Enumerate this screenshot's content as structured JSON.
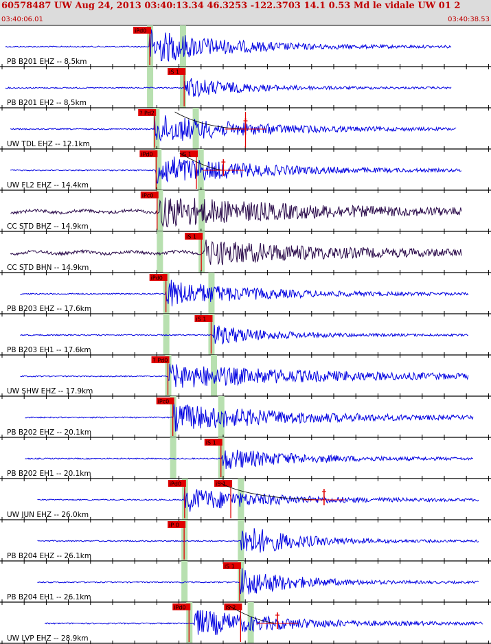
{
  "header": {
    "title": "60578487 UW Aug 24, 2013 03:40:13.34   46.3253 -122.3703 14.1 0.53 Md le vidale UW 01   2",
    "time_start": "03:40:06.01",
    "time_end": "03:40:38.53"
  },
  "colors": {
    "header_bg": "#dcdcdc",
    "header_text": "#c00000",
    "trace_blue": "#0000e0",
    "trace_dark": "#2a0a4a",
    "pick_red": "#e00000",
    "window_green": "#b8e0b0",
    "grid": "#000000"
  },
  "chart_data": {
    "type": "line",
    "title": "60578487 UW Aug 24, 2013 03:40:13.34   46.3253 -122.3703 14.1 0.53 Md le vidale UW 01   2",
    "time_range": [
      "03:40:06.01",
      "03:40:38.53"
    ],
    "channels": [
      {
        "label": "PB B201 EHZ -- 8.5km",
        "station": "B201",
        "net": "PB",
        "chan": "EHZ",
        "dist_km": 8.5,
        "trace": "blue",
        "pick": "iPd0",
        "pick_type": "P",
        "pick_t": 0.305,
        "onset_t": 0.305,
        "p_window": 0.305,
        "s_window": 0.372,
        "amp": 0.9,
        "decay": 0.25,
        "start": 0.0,
        "end": 0.92
      },
      {
        "label": "PB B201 EH2 -- 8.5km",
        "station": "B201",
        "net": "PB",
        "chan": "EH2",
        "dist_km": 8.5,
        "trace": "blue",
        "pick": "iS 1",
        "pick_type": "S",
        "pick_t": 0.375,
        "onset_t": 0.375,
        "p_window": 0.305,
        "s_window": 0.372,
        "amp": 0.55,
        "decay": 0.2,
        "start": 0.0,
        "end": 0.92
      },
      {
        "label": "UW TDL EHZ -- 12.1km",
        "station": "TDL",
        "net": "UW",
        "chan": "EHZ",
        "dist_km": 12.1,
        "trace": "blue",
        "pick": "? Pd2",
        "pick_type": "P",
        "pick_t": 0.315,
        "onset_t": 0.315,
        "p_window": 0.318,
        "s_window": 0.398,
        "amp": 0.75,
        "decay": 0.3,
        "start": 0.01,
        "end": 0.93
      },
      {
        "label": "UW FL2 EHZ -- 14.4km",
        "station": "FL2",
        "net": "UW",
        "chan": "EHZ",
        "dist_km": 14.4,
        "trace": "blue",
        "pick": "iPd0",
        "pick_type": "P",
        "pick_t": 0.318,
        "onset_t": 0.318,
        "p_window": 0.322,
        "s_window": 0.408,
        "amp": 0.8,
        "decay": 0.3,
        "start": 0.01,
        "end": 0.94
      },
      {
        "label": "CC STD BHZ -- 14.9km",
        "station": "STD",
        "net": "CC",
        "chan": "BHZ",
        "dist_km": 14.9,
        "trace": "dark",
        "pick": "iPc0",
        "pick_type": "P",
        "pick_t": 0.32,
        "onset_t": 0.325,
        "p_window": 0.325,
        "s_window": 0.41,
        "amp": 0.75,
        "decay": 0.45,
        "start": 0.01,
        "end": 0.94
      },
      {
        "label": "CC STD BHN -- 14.9km",
        "station": "STD",
        "net": "CC",
        "chan": "BHN",
        "dist_km": 14.9,
        "trace": "dark",
        "pick": "iS 1",
        "pick_type": "S",
        "pick_t": 0.41,
        "onset_t": 0.415,
        "p_window": 0.325,
        "s_window": 0.41,
        "amp": 0.6,
        "decay": 0.45,
        "start": 0.01,
        "end": 0.94
      },
      {
        "label": "PB B203 EHZ -- 17.6km",
        "station": "B203",
        "net": "PB",
        "chan": "EHZ",
        "dist_km": 17.6,
        "trace": "blue",
        "pick": "iPd0",
        "pick_type": "P",
        "pick_t": 0.338,
        "onset_t": 0.338,
        "p_window": 0.338,
        "s_window": 0.43,
        "amp": 0.7,
        "decay": 0.28,
        "start": 0.03,
        "end": 0.955
      },
      {
        "label": "PB B203 EH1 -- 17.6km",
        "station": "B203",
        "net": "PB",
        "chan": "EH1",
        "dist_km": 17.6,
        "trace": "blue",
        "pick": "iS 1",
        "pick_type": "S",
        "pick_t": 0.43,
        "onset_t": 0.435,
        "p_window": 0.338,
        "s_window": 0.43,
        "amp": 0.5,
        "decay": 0.22,
        "start": 0.03,
        "end": 0.955
      },
      {
        "label": "UW SHW EHZ -- 17.9km",
        "station": "SHW",
        "net": "UW",
        "chan": "EHZ",
        "dist_km": 17.9,
        "trace": "blue",
        "pick": "? Pd0",
        "pick_type": "P",
        "pick_t": 0.342,
        "onset_t": 0.342,
        "p_window": 0.342,
        "s_window": 0.435,
        "amp": 0.6,
        "decay": 0.55,
        "start": 0.03,
        "end": 0.955
      },
      {
        "label": "PB B202 EHZ -- 20.1km",
        "station": "B202",
        "net": "PB",
        "chan": "EHZ",
        "dist_km": 20.1,
        "trace": "blue",
        "pick": "iPc0",
        "pick_type": "P",
        "pick_t": 0.352,
        "onset_t": 0.352,
        "p_window": 0.352,
        "s_window": 0.45,
        "amp": 0.7,
        "decay": 0.4,
        "start": 0.04,
        "end": 0.965
      },
      {
        "label": "PB B202 EH1 -- 20.1km",
        "station": "B202",
        "net": "PB",
        "chan": "EH1",
        "dist_km": 20.1,
        "trace": "blue",
        "pick": "iS 1",
        "pick_type": "S",
        "pick_t": 0.45,
        "onset_t": 0.452,
        "p_window": 0.352,
        "s_window": 0.45,
        "amp": 0.55,
        "decay": 0.3,
        "start": 0.04,
        "end": 0.965
      },
      {
        "label": "UW JUN EHZ -- 26.0km",
        "station": "JUN",
        "net": "UW",
        "chan": "EHZ",
        "dist_km": 26.0,
        "trace": "blue",
        "pick": "iPd0",
        "pick_type": "P",
        "pick_t": 0.376,
        "onset_t": 0.376,
        "p_window": 0.376,
        "s_window": 0.49,
        "amp": 0.6,
        "decay": 0.3,
        "start": 0.065,
        "end": 0.975
      },
      {
        "label": "PB B204 EHZ -- 26.1km",
        "station": "B204",
        "net": "PB",
        "chan": "EHZ",
        "dist_km": 26.1,
        "trace": "blue",
        "pick": "iP 0",
        "pick_type": "P",
        "pick_t": 0.375,
        "onset_t": 0.49,
        "p_window": 0.375,
        "s_window": 0.49,
        "amp": 0.85,
        "decay": 0.22,
        "start": 0.065,
        "end": 0.975
      },
      {
        "label": "PB B204 EH1 -- 26.1km",
        "station": "B204",
        "net": "PB",
        "chan": "EH1",
        "dist_km": 26.1,
        "trace": "blue",
        "pick": "iS 1",
        "pick_type": "S",
        "pick_t": 0.488,
        "onset_t": 0.49,
        "p_window": 0.375,
        "s_window": 0.49,
        "amp": 0.75,
        "decay": 0.22,
        "start": 0.065,
        "end": 0.975
      },
      {
        "label": "UW LVP EHZ -- 28.9km",
        "station": "LVP",
        "net": "UW",
        "chan": "EHZ",
        "dist_km": 28.9,
        "trace": "blue",
        "pick": "iPd0",
        "pick_type": "P",
        "pick_t": 0.385,
        "onset_t": 0.395,
        "p_window": 0.385,
        "s_window": 0.51,
        "amp": 0.7,
        "decay": 0.3,
        "start": 0.08,
        "end": 0.985
      }
    ],
    "extra_picks": [
      {
        "channel": 2,
        "pick": "",
        "pick_type": "S",
        "pick_t": 0.5
      },
      {
        "channel": 3,
        "pick": "iS 1",
        "pick_type": "S",
        "pick_t": 0.4
      },
      {
        "channel": 11,
        "pick": "iS 1",
        "pick_type": "S",
        "pick_t": 0.47
      },
      {
        "channel": 14,
        "pick": "iS 2",
        "pick_type": "S",
        "pick_t": 0.49
      }
    ],
    "coda_markers": [
      {
        "channel": 2,
        "t": 0.5
      },
      {
        "channel": 3,
        "t": 0.455
      },
      {
        "channel": 11,
        "t": 0.66
      },
      {
        "channel": 14,
        "t": 0.565
      }
    ]
  }
}
